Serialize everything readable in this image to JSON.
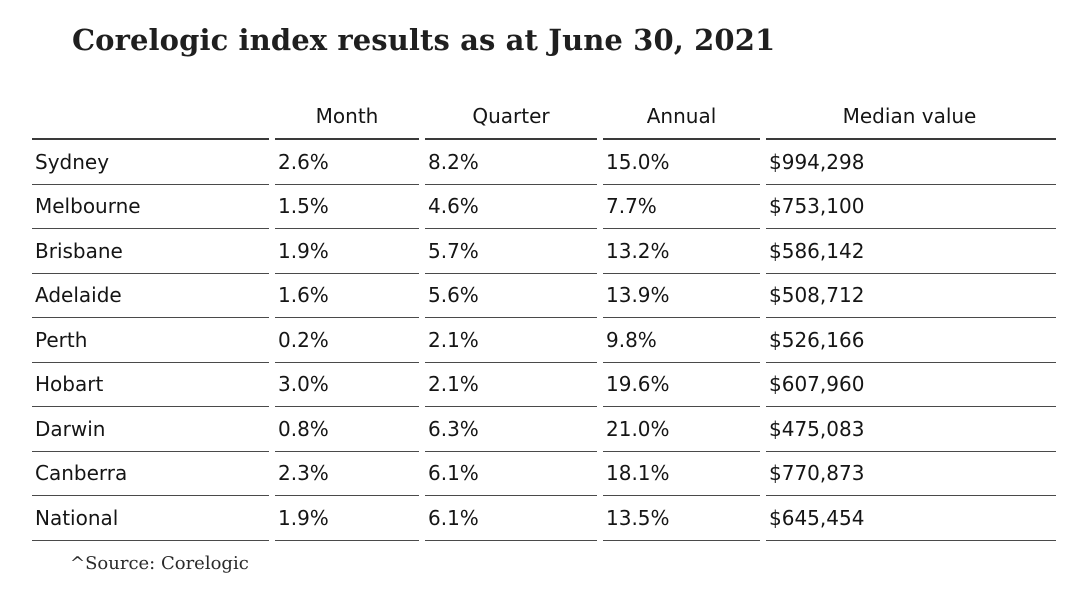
{
  "title": "Corelogic index results as at June 30, 2021",
  "table": {
    "headers": [
      "",
      "Month",
      "Quarter",
      "Annual",
      "Median value"
    ],
    "rows": [
      {
        "city": "Sydney",
        "month": "2.6%",
        "quarter": "8.2%",
        "annual": "15.0%",
        "median": "$994,298"
      },
      {
        "city": "Melbourne",
        "month": "1.5%",
        "quarter": "4.6%",
        "annual": "7.7%",
        "median": "$753,100"
      },
      {
        "city": "Brisbane",
        "month": "1.9%",
        "quarter": "5.7%",
        "annual": "13.2%",
        "median": "$586,142"
      },
      {
        "city": "Adelaide",
        "month": "1.6%",
        "quarter": "5.6%",
        "annual": "13.9%",
        "median": "$508,712"
      },
      {
        "city": "Perth",
        "month": "0.2%",
        "quarter": "2.1%",
        "annual": "9.8%",
        "median": "$526,166"
      },
      {
        "city": "Hobart",
        "month": "3.0%",
        "quarter": "2.1%",
        "annual": "19.6%",
        "median": "$607,960"
      },
      {
        "city": "Darwin",
        "month": "0.8%",
        "quarter": "6.3%",
        "annual": "21.0%",
        "median": "$475,083"
      },
      {
        "city": "Canberra",
        "month": "2.3%",
        "quarter": "6.1%",
        "annual": "18.1%",
        "median": "$770,873"
      },
      {
        "city": "National",
        "month": "1.9%",
        "quarter": "6.1%",
        "annual": "13.5%",
        "median": "$645,454"
      }
    ]
  },
  "source": "^Source: Corelogic"
}
